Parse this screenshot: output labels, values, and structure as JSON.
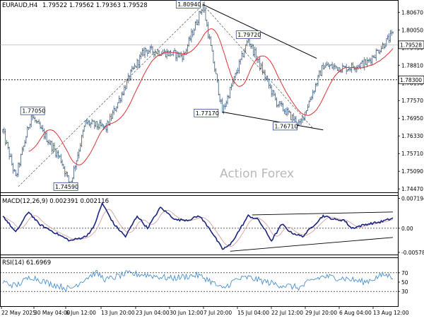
{
  "header": {
    "symbol": "EURAUD,H4",
    "ohlc": "1.79522 1.79562 1.79363 1.79528"
  },
  "watermark": "Action Forex",
  "colors": {
    "bars": "#3a5a7a",
    "ma": "#e03030",
    "trend": "#000000",
    "dashed": "#555555",
    "grid": "#000000",
    "macd": "#1a237e",
    "signal": "#d7a0a0",
    "rsi": "#4a90d0",
    "price_box_bg": "#ffffff",
    "price_box_border": "#000000"
  },
  "chart_data": [
    {
      "type": "candlestick",
      "name": "price",
      "title": "EURAUD,H4",
      "ylim": [
        1.7435,
        1.8105
      ],
      "yticks": [
        1.8067,
        1.8005,
        1.7943,
        1.7881,
        1.7819,
        1.7757,
        1.7695,
        1.7633,
        1.7571,
        1.7509,
        1.7447
      ],
      "ytick_labels": [
        "1.80670",
        "1.80050",
        "1.79430",
        "1.78810",
        "1.78190",
        "1.77570",
        "1.76950",
        "1.76330",
        "1.75710",
        "1.75090",
        "1.74470"
      ],
      "current_price": {
        "value": 1.79528,
        "label": "1.79528"
      },
      "horizontal_level": {
        "value": 1.783,
        "label": "1.78300"
      },
      "x_axis_labels": [
        "22 May 2025",
        "30 May 04:00",
        "6 Jun 12:00",
        "13 Jun 20:00",
        "23 Jun 04:00",
        "30 Jun 12:00",
        "7 Jul 20:00",
        "15 Jul 04:00",
        "22 Jul 12:00",
        "29 Jul 20:00",
        "6 Aug 04:00",
        "13 Aug 12:00"
      ],
      "anchors": [
        [
          0,
          1.765
        ],
        [
          10,
          1.7485
        ],
        [
          22,
          1.7705
        ],
        [
          45,
          1.755
        ],
        [
          52,
          1.7459
        ],
        [
          64,
          1.768
        ],
        [
          80,
          1.766
        ],
        [
          99,
          1.785
        ],
        [
          110,
          1.7935
        ],
        [
          140,
          1.7915
        ],
        [
          155,
          1.8094
        ],
        [
          170,
          1.7717
        ],
        [
          190,
          1.7972
        ],
        [
          212,
          1.775
        ],
        [
          230,
          1.7671
        ],
        [
          248,
          1.788
        ],
        [
          265,
          1.787
        ],
        [
          282,
          1.789
        ],
        [
          302,
          1.799
        ]
      ],
      "price_labels": [
        {
          "text": "1.80940",
          "value": 1.8094,
          "bar": 155
        },
        {
          "text": "1.79720",
          "value": 1.7972,
          "bar": 190
        },
        {
          "text": "1.77050",
          "value": 1.7705,
          "bar": 22
        },
        {
          "text": "1.77170",
          "value": 1.7717,
          "bar": 170
        },
        {
          "text": "1.76710",
          "value": 1.7671,
          "bar": 230
        },
        {
          "text": "1.74590",
          "value": 1.7459,
          "bar": 52
        }
      ],
      "trendlines": [
        {
          "from": [
            155,
            1.8094
          ],
          "to": [
            243,
            1.7905
          ]
        },
        {
          "from": [
            170,
            1.7717
          ],
          "to": [
            248,
            1.7654
          ]
        }
      ],
      "dashed_lines": [
        {
          "from": [
            12,
            1.7455
          ],
          "to": [
            155,
            1.8094
          ]
        },
        {
          "from": [
            155,
            1.8094
          ],
          "to": [
            240,
            1.766
          ]
        }
      ]
    },
    {
      "type": "line",
      "name": "macd",
      "title": "MACD(12,26,9) 0.00239 1 0.002116",
      "ylim": [
        -0.0063,
        0.0076
      ],
      "yticks": [
        0.007194,
        0.0,
        -0.005784
      ],
      "ytick_labels": [
        "0.007194",
        "0.00",
        "-0.005784"
      ],
      "anchors": [
        [
          0,
          0.003
        ],
        [
          10,
          -0.001
        ],
        [
          20,
          0.004
        ],
        [
          28,
          0.001
        ],
        [
          40,
          -0.001
        ],
        [
          52,
          -0.003
        ],
        [
          64,
          -0.002
        ],
        [
          70,
          0.0
        ],
        [
          77,
          0.006
        ],
        [
          86,
          0.001
        ],
        [
          95,
          -0.002
        ],
        [
          104,
          0.003
        ],
        [
          112,
          0.0
        ],
        [
          122,
          0.005
        ],
        [
          134,
          0.002
        ],
        [
          144,
          0.002
        ],
        [
          152,
          0.003
        ],
        [
          160,
          0.0
        ],
        [
          170,
          -0.005
        ],
        [
          176,
          -0.004
        ],
        [
          190,
          0.003
        ],
        [
          198,
          0.002
        ],
        [
          208,
          -0.003
        ],
        [
          216,
          0.001
        ],
        [
          223,
          -0.001
        ],
        [
          232,
          -0.002
        ],
        [
          248,
          0.003
        ],
        [
          258,
          0.002
        ],
        [
          264,
          0.002
        ],
        [
          270,
          0.0
        ],
        [
          282,
          0.001
        ],
        [
          292,
          0.0015
        ],
        [
          302,
          0.0024
        ]
      ],
      "trendlines": [
        {
          "from": [
            193,
            0.0032
          ],
          "to": [
            302,
            0.0039
          ]
        },
        {
          "from": [
            176,
            -0.0055
          ],
          "to": [
            302,
            -0.0022
          ]
        }
      ]
    },
    {
      "type": "line",
      "name": "rsi",
      "title": "RSI(14) 61.6969",
      "ylim": [
        0,
        100
      ],
      "levels": [
        70,
        30
      ],
      "ytick_labels": [
        "70",
        "50",
        "30"
      ],
      "anchors": [
        [
          0,
          50
        ],
        [
          10,
          42
        ],
        [
          22,
          62
        ],
        [
          35,
          48
        ],
        [
          46,
          40
        ],
        [
          52,
          35
        ],
        [
          64,
          58
        ],
        [
          72,
          70
        ],
        [
          80,
          55
        ],
        [
          96,
          68
        ],
        [
          110,
          66
        ],
        [
          130,
          58
        ],
        [
          150,
          65
        ],
        [
          158,
          57
        ],
        [
          170,
          35
        ],
        [
          180,
          55
        ],
        [
          190,
          60
        ],
        [
          212,
          45
        ],
        [
          220,
          42
        ],
        [
          230,
          38
        ],
        [
          240,
          55
        ],
        [
          248,
          62
        ],
        [
          265,
          58
        ],
        [
          280,
          50
        ],
        [
          295,
          66
        ],
        [
          302,
          61.7
        ]
      ]
    }
  ]
}
